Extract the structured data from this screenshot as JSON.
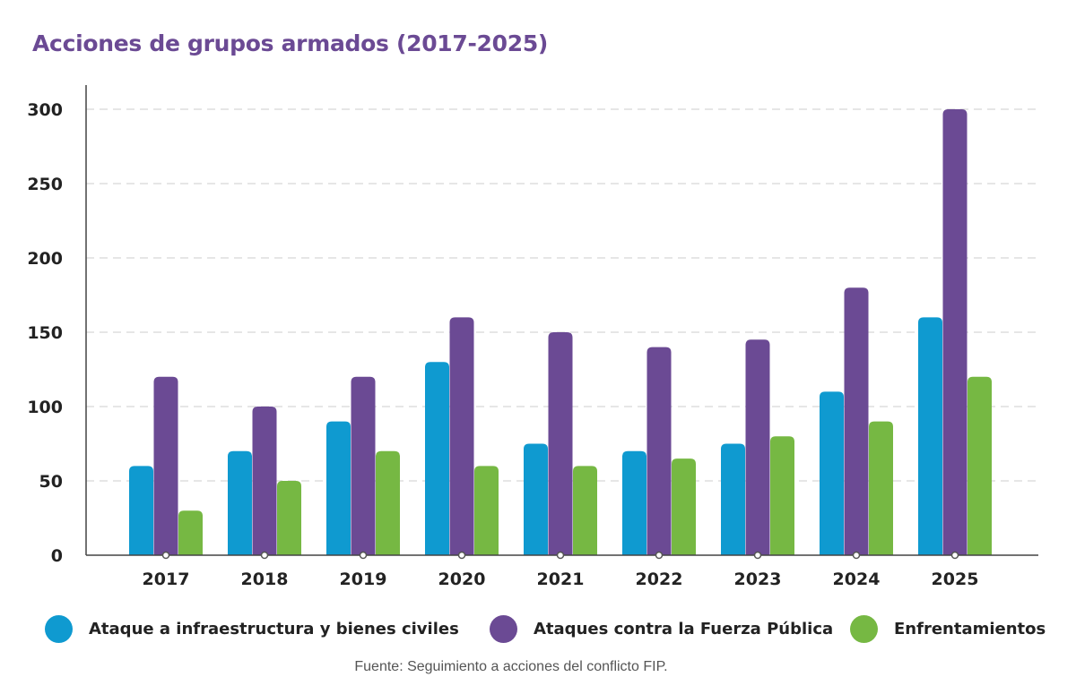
{
  "title": "Acciones de grupos armados (2017-2025)",
  "source": "Fuente: Seguimiento a acciones del conflicto FIP.",
  "colors": {
    "title": "#6b4a94",
    "infraestructura": "#0f9ad0",
    "fuerza_publica": "#6b4a94",
    "enfrentamientos": "#76b843",
    "grid": "#d6d6d6",
    "axis": "#444444"
  },
  "chart_data": {
    "type": "bar",
    "title": "Acciones de grupos armados (2017-2025)",
    "xlabel": "",
    "ylabel": "",
    "categories": [
      "2017",
      "2018",
      "2019",
      "2020",
      "2021",
      "2022",
      "2023",
      "2024",
      "2025"
    ],
    "ylim": [
      0,
      300
    ],
    "yticks": [
      0,
      50,
      100,
      150,
      200,
      250,
      300
    ],
    "grid": true,
    "legend_position": "bottom",
    "series": [
      {
        "name": "Ataque a infraestructura y bienes civiles",
        "color": "#0f9ad0",
        "values": [
          60,
          70,
          90,
          130,
          75,
          70,
          75,
          110,
          160
        ]
      },
      {
        "name": "Ataques contra la Fuerza Pública",
        "color": "#6b4a94",
        "values": [
          120,
          100,
          120,
          160,
          150,
          140,
          145,
          180,
          300
        ]
      },
      {
        "name": "Enfrentamientos",
        "color": "#76b843",
        "values": [
          30,
          50,
          70,
          60,
          60,
          65,
          80,
          90,
          120
        ]
      }
    ]
  }
}
